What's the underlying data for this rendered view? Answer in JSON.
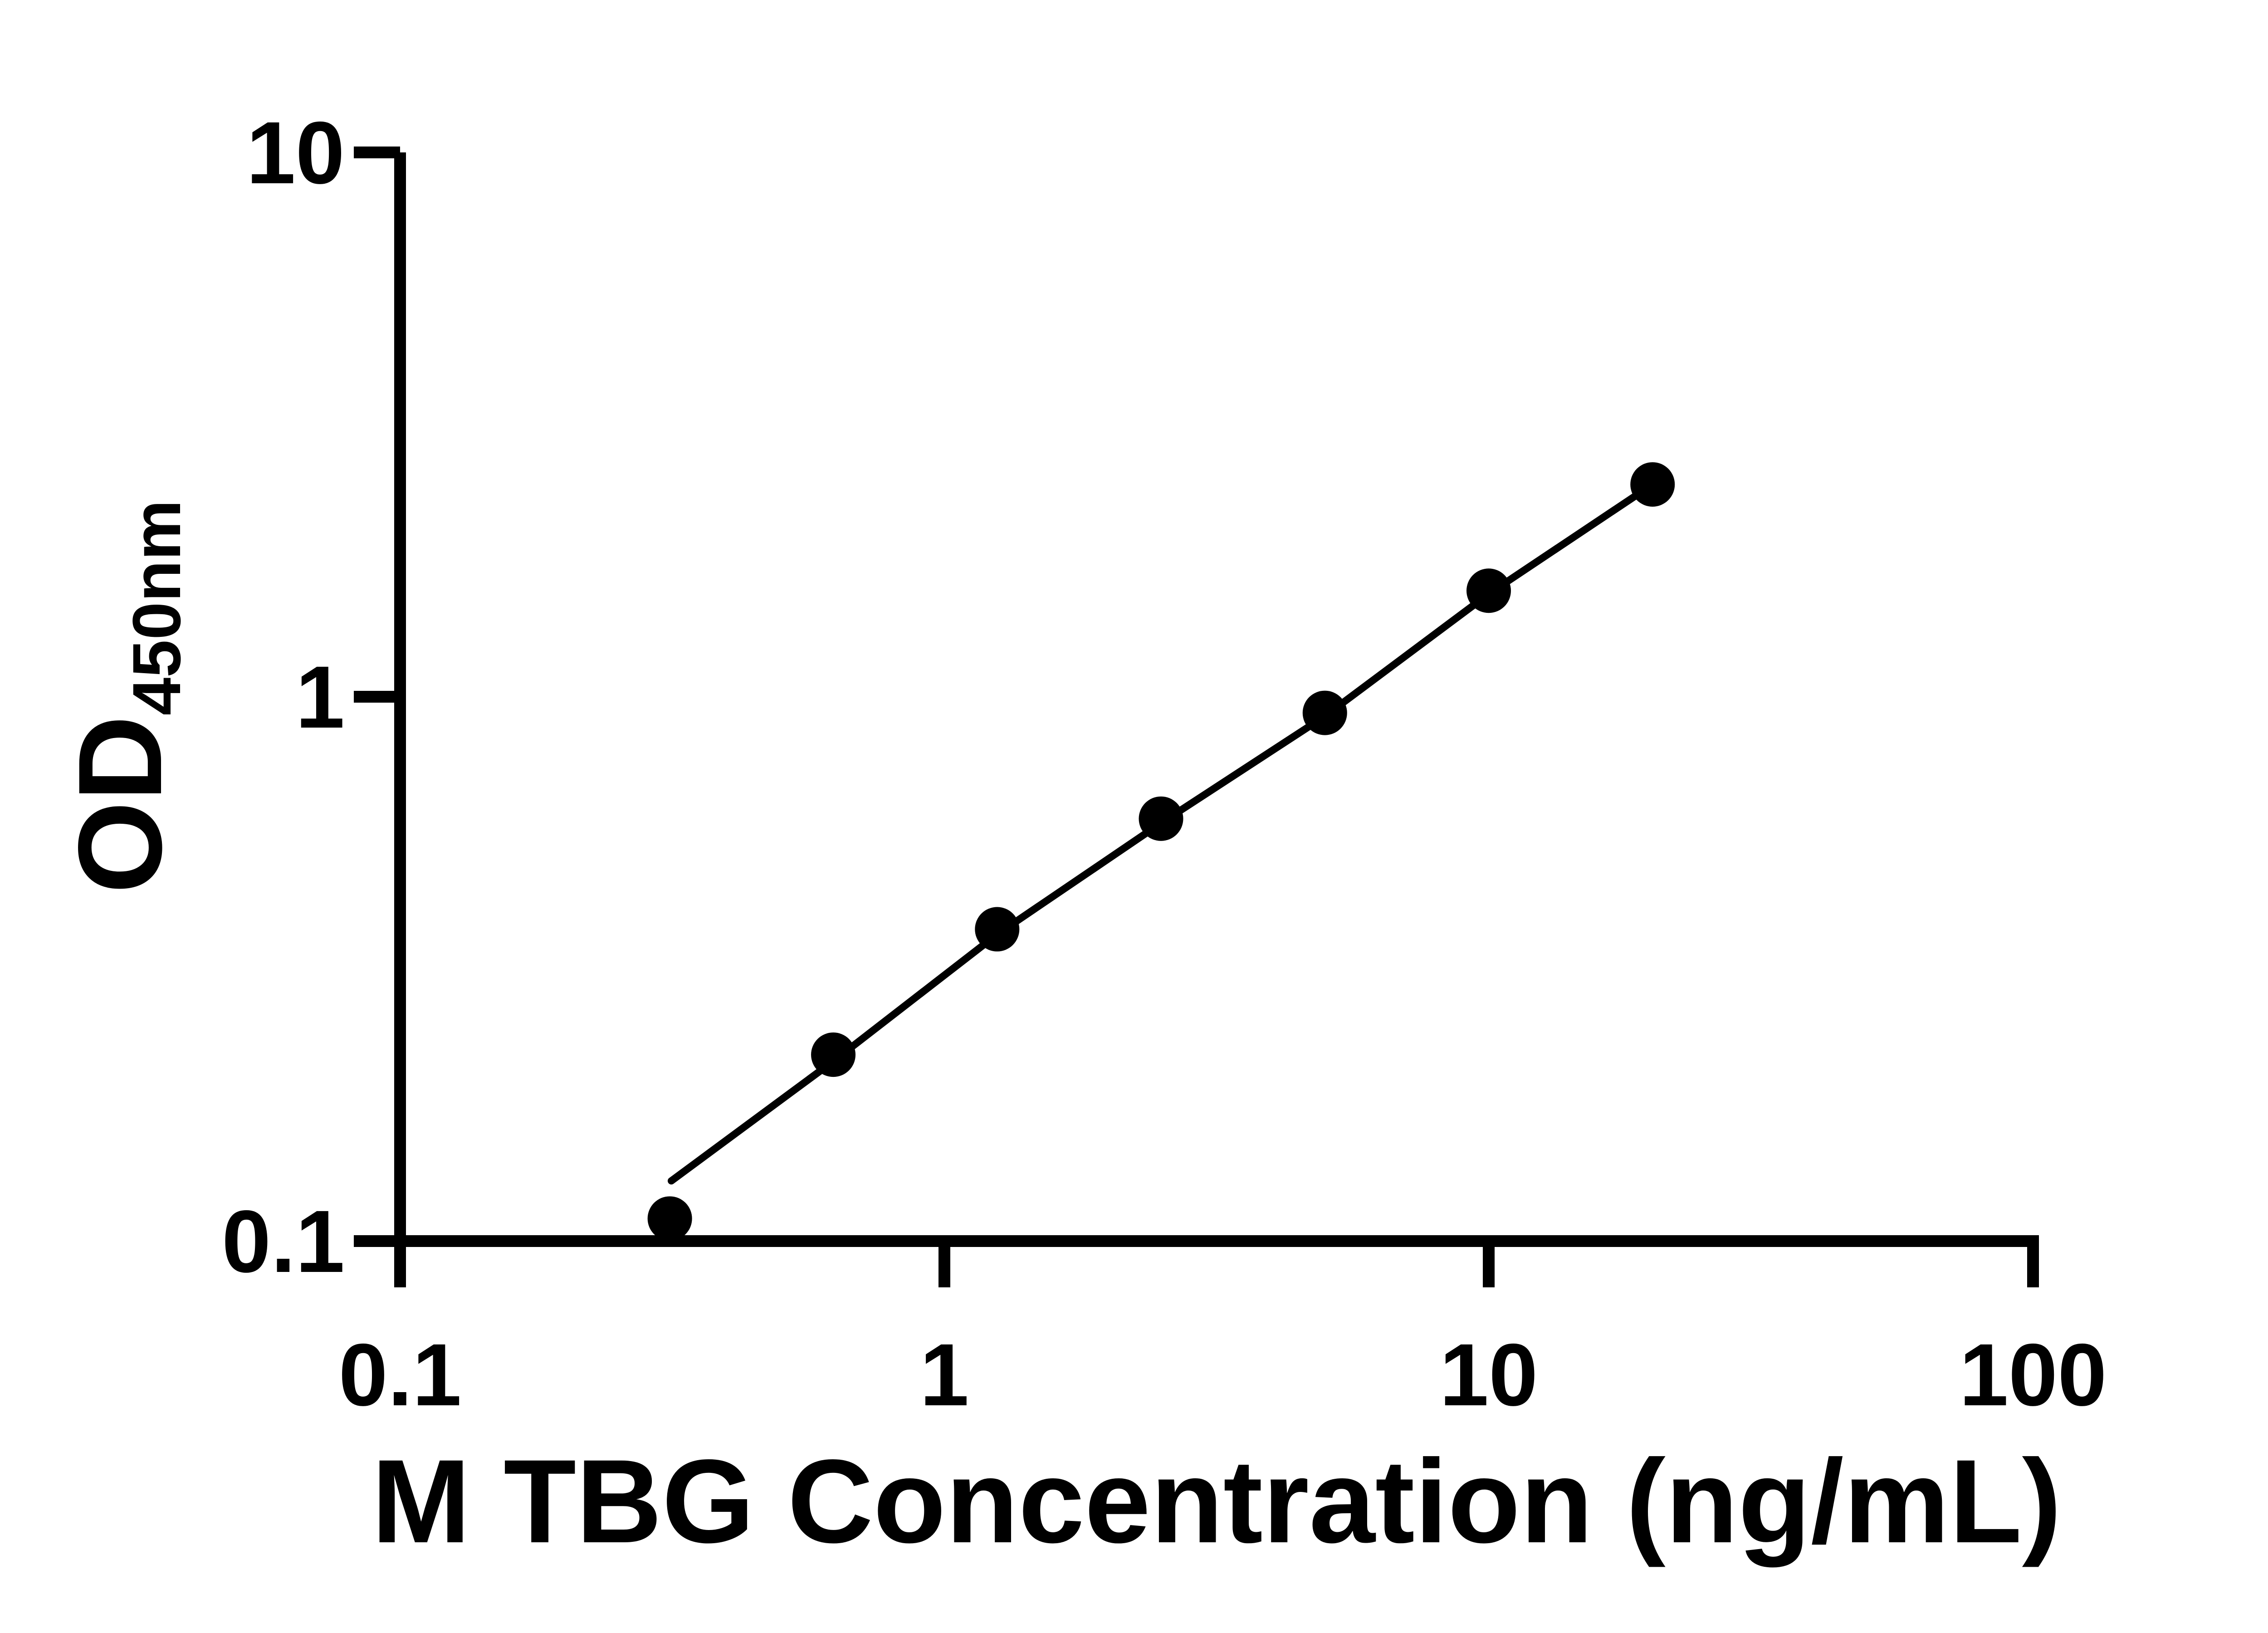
{
  "chart_data": {
    "type": "scatter",
    "title": "",
    "xlabel": "M TBG Concentration (ng/mL)",
    "ylabel_main": "OD",
    "ylabel_sub": "450nm",
    "x_scale": "log",
    "y_scale": "log",
    "xlim": [
      0.1,
      100
    ],
    "ylim": [
      0.1,
      10
    ],
    "grid": "off",
    "legend": "none",
    "marker_color": "#000000",
    "line_color": "#000000",
    "background_color": "#ffffff",
    "x_ticks": [
      {
        "value": 0.1,
        "label": "0.1"
      },
      {
        "value": 1,
        "label": "1"
      },
      {
        "value": 10,
        "label": "10"
      },
      {
        "value": 100,
        "label": "100"
      }
    ],
    "y_ticks": [
      {
        "value": 0.1,
        "label": "0.1"
      },
      {
        "value": 1,
        "label": "1"
      },
      {
        "value": 10,
        "label": "10"
      }
    ],
    "points": [
      {
        "x": 0.313,
        "y": 0.11
      },
      {
        "x": 0.625,
        "y": 0.22
      },
      {
        "x": 1.25,
        "y": 0.374
      },
      {
        "x": 2.5,
        "y": 0.597
      },
      {
        "x": 5,
        "y": 0.934
      },
      {
        "x": 10,
        "y": 1.566
      },
      {
        "x": 20,
        "y": 2.455
      }
    ],
    "trend_line": [
      [
        0.315,
        0.129
      ],
      [
        0.625,
        0.214
      ],
      [
        1.25,
        0.366
      ],
      [
        2.5,
        0.586
      ],
      [
        5,
        0.921
      ],
      [
        10,
        1.545
      ],
      [
        20,
        2.455
      ]
    ]
  }
}
